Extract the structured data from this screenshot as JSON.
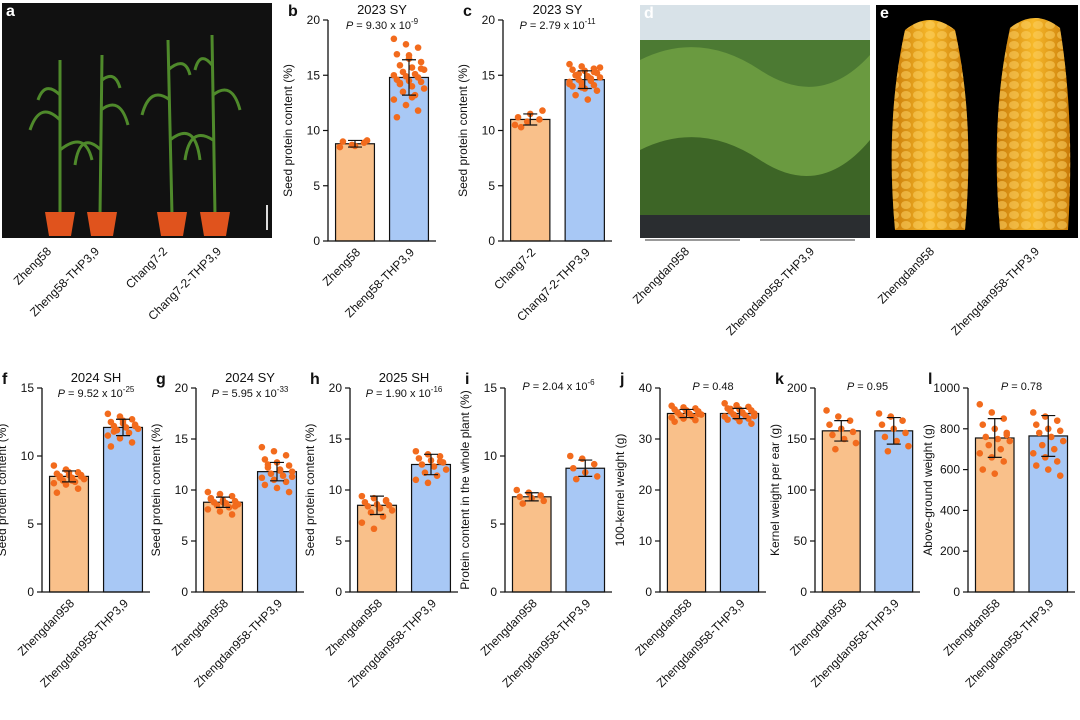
{
  "chart_data": [
    {
      "type": "bar",
      "panel": "b",
      "title": "2023 SY",
      "p": {
        "label": "P",
        "text": " = 9.30 x 10",
        "exponent": "-9"
      },
      "ylabel": "Seed protein content (%)",
      "categories": [
        "Zheng58",
        "Zheng58-THP3,9"
      ],
      "values": [
        8.8,
        14.8
      ],
      "errors": [
        0.3,
        1.6
      ],
      "points": [
        [
          8.5,
          8.7,
          8.9,
          9.0,
          8.6,
          9.1
        ],
        [
          18.3,
          17.8,
          17.5,
          16.9,
          16.5,
          16.2,
          15.9,
          15.7,
          15.5,
          15.3,
          15.1,
          15.0,
          14.9,
          14.8,
          14.6,
          14.5,
          14.4,
          14.2,
          14.0,
          13.8,
          13.5,
          13.2,
          12.8,
          12.3,
          11.8,
          11.2,
          16.8,
          15.6,
          14.3,
          13.0
        ]
      ],
      "colors": [
        "#f9c08a",
        "#a8c8f5"
      ],
      "point_color": "#f26b1d",
      "ylim": [
        0,
        20
      ],
      "yticks": [
        0,
        5,
        10,
        15,
        20
      ]
    },
    {
      "type": "bar",
      "panel": "c",
      "title": "2023 SY",
      "p": {
        "label": "P",
        "text": " = 2.79 x 10",
        "exponent": "-11"
      },
      "ylabel": "Seed protein content (%)",
      "categories": [
        "Chang7-2",
        "Chang7-2-THP3,9"
      ],
      "values": [
        11.0,
        14.6
      ],
      "errors": [
        0.5,
        0.8
      ],
      "points": [
        [
          10.5,
          10.8,
          11.0,
          11.2,
          11.5,
          11.8,
          10.3
        ],
        [
          16.0,
          15.8,
          15.6,
          15.5,
          15.4,
          15.2,
          15.0,
          14.9,
          14.8,
          14.6,
          14.5,
          14.4,
          14.3,
          14.1,
          14.0,
          13.8,
          13.6,
          13.2,
          12.8,
          15.7,
          15.1,
          14.7,
          14.2,
          13.9,
          15.3
        ]
      ],
      "colors": [
        "#f9c08a",
        "#a8c8f5"
      ],
      "point_color": "#f26b1d",
      "ylim": [
        0,
        20
      ],
      "yticks": [
        0,
        5,
        10,
        15,
        20
      ]
    },
    {
      "type": "bar",
      "panel": "f",
      "title": "2024 SH",
      "p": {
        "label": "P",
        "text": " = 9.52 x 10",
        "exponent": "-25"
      },
      "ylabel": "Seed protein content (%)",
      "categories": [
        "Zhengdan958",
        "Zhengdan958-THP3,9"
      ],
      "values": [
        8.5,
        12.1
      ],
      "errors": [
        0.4,
        0.6
      ],
      "points": [
        [
          9.3,
          9.0,
          8.8,
          8.7,
          8.6,
          8.5,
          8.5,
          8.4,
          8.3,
          8.2,
          8.1,
          8.0,
          7.9,
          7.6,
          7.3,
          8.8,
          8.6,
          8.4,
          8.2
        ],
        [
          13.1,
          12.9,
          12.7,
          12.5,
          12.4,
          12.3,
          12.2,
          12.1,
          12.0,
          11.9,
          11.7,
          11.5,
          11.3,
          11.0,
          10.7,
          12.6,
          12.2,
          11.8
        ]
      ],
      "colors": [
        "#f9c08a",
        "#a8c8f5"
      ],
      "point_color": "#f26b1d",
      "ylim": [
        0,
        15
      ],
      "yticks": [
        0,
        5,
        10,
        15
      ]
    },
    {
      "type": "bar",
      "panel": "g",
      "title": "2024 SY",
      "p": {
        "label": "P",
        "text": " = 5.95 x 10",
        "exponent": "-33"
      },
      "ylabel": "Seed protein content (%)",
      "categories": [
        "Zhengdan958",
        "Zhengdan958-THP3,9"
      ],
      "values": [
        8.8,
        11.8
      ],
      "errors": [
        0.5,
        0.9
      ],
      "points": [
        [
          9.8,
          9.6,
          9.4,
          9.2,
          9.0,
          8.9,
          8.8,
          8.7,
          8.6,
          8.5,
          8.3,
          8.1,
          7.9,
          7.6,
          9.1,
          8.8,
          8.4
        ],
        [
          14.2,
          13.8,
          13.4,
          13.0,
          12.7,
          12.4,
          12.2,
          12.0,
          11.8,
          11.6,
          11.4,
          11.2,
          11.0,
          10.8,
          10.5,
          10.2,
          9.8,
          12.5,
          11.9,
          11.3
        ]
      ],
      "colors": [
        "#f9c08a",
        "#a8c8f5"
      ],
      "point_color": "#f26b1d",
      "ylim": [
        0,
        20
      ],
      "yticks": [
        0,
        5,
        10,
        15,
        20
      ]
    },
    {
      "type": "bar",
      "panel": "h",
      "title": "2025 SH",
      "p": {
        "label": "P",
        "text": " = 1.90 x 10",
        "exponent": "-16"
      },
      "ylabel": "Seed protein content (%)",
      "categories": [
        "Zhengdan958",
        "Zhengdan958-THP3,9"
      ],
      "values": [
        8.5,
        12.5
      ],
      "errors": [
        0.9,
        1.0
      ],
      "points": [
        [
          9.4,
          9.2,
          9.0,
          8.8,
          8.6,
          8.5,
          8.4,
          8.2,
          8.0,
          7.8,
          7.4,
          6.8,
          6.2,
          8.9
        ],
        [
          13.8,
          13.5,
          13.3,
          13.1,
          12.9,
          12.7,
          12.5,
          12.3,
          12.0,
          11.7,
          11.4,
          11.0,
          10.7,
          12.8
        ]
      ],
      "colors": [
        "#f9c08a",
        "#a8c8f5"
      ],
      "point_color": "#f26b1d",
      "ylim": [
        0,
        20
      ],
      "yticks": [
        0,
        5,
        10,
        15,
        20
      ]
    },
    {
      "type": "bar",
      "panel": "i",
      "p": {
        "label": "P",
        "text": " = 2.04 x 10",
        "exponent": "-6"
      },
      "ylabel": "Protein content in the whole plant (%)",
      "categories": [
        "Zhengdan958",
        "Zhengdan958-THP3,9"
      ],
      "values": [
        7.0,
        9.1
      ],
      "errors": [
        0.3,
        0.6
      ],
      "points": [
        [
          7.5,
          7.3,
          7.1,
          7.0,
          6.9,
          6.7,
          6.5
        ],
        [
          10.0,
          9.8,
          9.4,
          9.1,
          8.8,
          8.5,
          8.3
        ]
      ],
      "colors": [
        "#f9c08a",
        "#a8c8f5"
      ],
      "point_color": "#f26b1d",
      "ylim": [
        0,
        15
      ],
      "yticks": [
        0,
        5,
        10,
        15
      ]
    },
    {
      "type": "bar",
      "panel": "j",
      "p": {
        "label": "P",
        "text": " = 0.48"
      },
      "ylabel": "100-kernel weight (g)",
      "categories": [
        "Zhengdan958",
        "Zhengdan958-THP3,9"
      ],
      "values": [
        35.0,
        35.0
      ],
      "errors": [
        0.8,
        1.0
      ],
      "points": [
        [
          36.5,
          36.2,
          36.0,
          35.8,
          35.6,
          35.4,
          35.2,
          35.0,
          34.8,
          34.6,
          34.4,
          34.2,
          34.0,
          33.7,
          33.4,
          35.5,
          34.9
        ],
        [
          37.0,
          36.6,
          36.3,
          36.0,
          35.8,
          35.6,
          35.4,
          35.2,
          35.0,
          34.8,
          34.6,
          34.4,
          34.2,
          34.0,
          33.8,
          33.5,
          33.0,
          35.9,
          35.1,
          34.5
        ]
      ],
      "colors": [
        "#f9c08a",
        "#a8c8f5"
      ],
      "point_color": "#f26b1d",
      "ylim": [
        0,
        40
      ],
      "yticks": [
        0,
        10,
        20,
        30,
        40
      ]
    },
    {
      "type": "bar",
      "panel": "k",
      "p": {
        "label": "P",
        "text": " = 0.95"
      },
      "ylabel": "Kernel weight per ear (g)",
      "categories": [
        "Zhengdan958",
        "Zhengdan958-THP3,9"
      ],
      "values": [
        158,
        158
      ],
      "errors": [
        10,
        13
      ],
      "points": [
        [
          178,
          172,
          168,
          164,
          160,
          157,
          154,
          150,
          146,
          140
        ],
        [
          175,
          172,
          168,
          164,
          160,
          156,
          152,
          148,
          143,
          138
        ]
      ],
      "colors": [
        "#f9c08a",
        "#a8c8f5"
      ],
      "point_color": "#f26b1d",
      "ylim": [
        0,
        200
      ],
      "yticks": [
        0,
        50,
        100,
        150,
        200
      ]
    },
    {
      "type": "bar",
      "panel": "l",
      "p": {
        "label": "P",
        "text": " = 0.78"
      },
      "ylabel": "Above-ground weight (g)",
      "categories": [
        "Zhengdan958",
        "Zhengdan958-THP3,9"
      ],
      "values": [
        755,
        765
      ],
      "errors": [
        95,
        100
      ],
      "points": [
        [
          920,
          880,
          850,
          820,
          800,
          780,
          760,
          750,
          740,
          720,
          700,
          680,
          660,
          640,
          600,
          580,
          770
        ],
        [
          880,
          860,
          840,
          820,
          800,
          790,
          780,
          760,
          740,
          720,
          700,
          680,
          660,
          640,
          620,
          600,
          570
        ]
      ],
      "colors": [
        "#f9c08a",
        "#a8c8f5"
      ],
      "point_color": "#f26b1d",
      "ylim": [
        0,
        1000
      ],
      "yticks": [
        0,
        200,
        400,
        600,
        800,
        1000
      ]
    }
  ],
  "photos": [
    {
      "panel": "a",
      "labels": [
        "Zheng58",
        "Zheng58-THP3,9",
        "Chang7-2",
        "Chang7-2-THP3,9"
      ]
    },
    {
      "panel": "d",
      "labels": [
        "Zhengdan958",
        "Zhengdan958-THP3,9"
      ]
    },
    {
      "panel": "e",
      "labels": [
        "Zhengdan958",
        "Zhengdan958-THP3,9"
      ]
    }
  ]
}
